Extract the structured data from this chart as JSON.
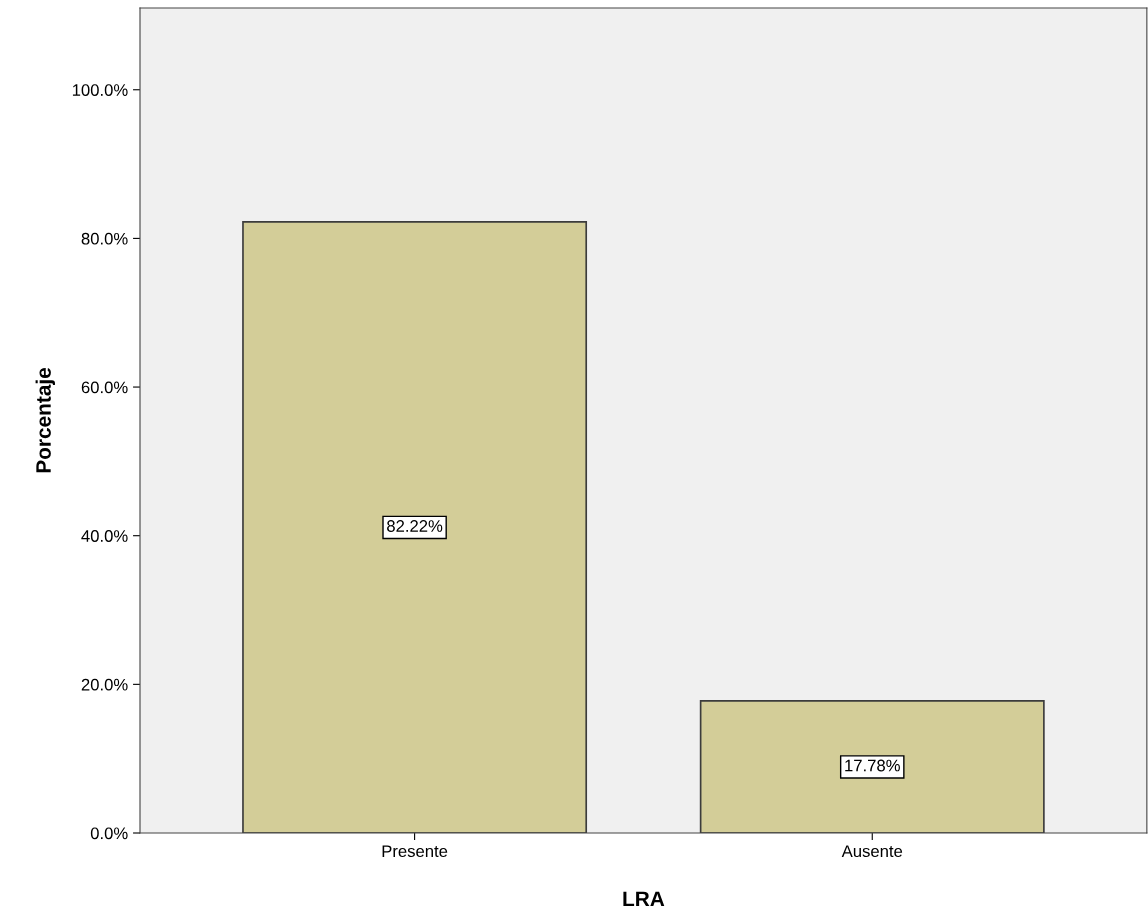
{
  "chart_data": {
    "type": "bar",
    "xlabel": "LRA",
    "ylabel": "Porcentaje",
    "categories": [
      "Presente",
      "Ausente"
    ],
    "values": [
      82.22,
      17.78
    ],
    "color": "#d3cd98",
    "value_labels": [
      "82.22%",
      "17.78%"
    ],
    "ylim": [
      0,
      111
    ],
    "yticks": [
      {
        "value": 0,
        "label": "0.0%"
      },
      {
        "value": 20,
        "label": "20.0%"
      },
      {
        "value": 40,
        "label": "40.0%"
      },
      {
        "value": 60,
        "label": "60.0%"
      },
      {
        "value": 80,
        "label": "80.0%"
      },
      {
        "value": 100,
        "label": "100.0%"
      }
    ],
    "grid": false,
    "legend": false
  }
}
